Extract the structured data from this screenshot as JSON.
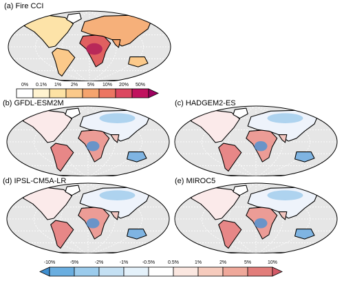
{
  "figure": {
    "panels": [
      {
        "id": "a",
        "label": "(a) Fire CCI",
        "style": "fire"
      },
      {
        "id": "b",
        "label": "(b) GFDL-ESM2M",
        "style": "diff"
      },
      {
        "id": "c",
        "label": "(c) HADGEM2-ES",
        "style": "diff"
      },
      {
        "id": "d",
        "label": "(d) IPSL-CM5A-LR",
        "style": "diff"
      },
      {
        "id": "e",
        "label": "(e) MIROC5",
        "style": "diff"
      }
    ],
    "colorbar_fire": {
      "ticks": [
        "0%",
        "0.1%",
        "1%",
        "2%",
        "5%",
        "10%",
        "20%",
        "50%"
      ],
      "colors": [
        "#ffffff",
        "#fff3d0",
        "#fde2a4",
        "#fbc98a",
        "#f5a46e",
        "#ec7562",
        "#dc4760",
        "#c1125e",
        "#9e0060"
      ]
    },
    "colorbar_diff": {
      "ticks": [
        "-10%",
        "-5%",
        "-2%",
        "-1%",
        "-0.5%",
        "0.5%",
        "1%",
        "2%",
        "5%",
        "10%"
      ],
      "colors": [
        "#3f8fd0",
        "#6aaee0",
        "#9bcbec",
        "#c4e0f3",
        "#e4f1fa",
        "#ffffff",
        "#fbe7e0",
        "#f6cbbd",
        "#efa89a",
        "#e27d7a",
        "#d45a67"
      ]
    }
  }
}
